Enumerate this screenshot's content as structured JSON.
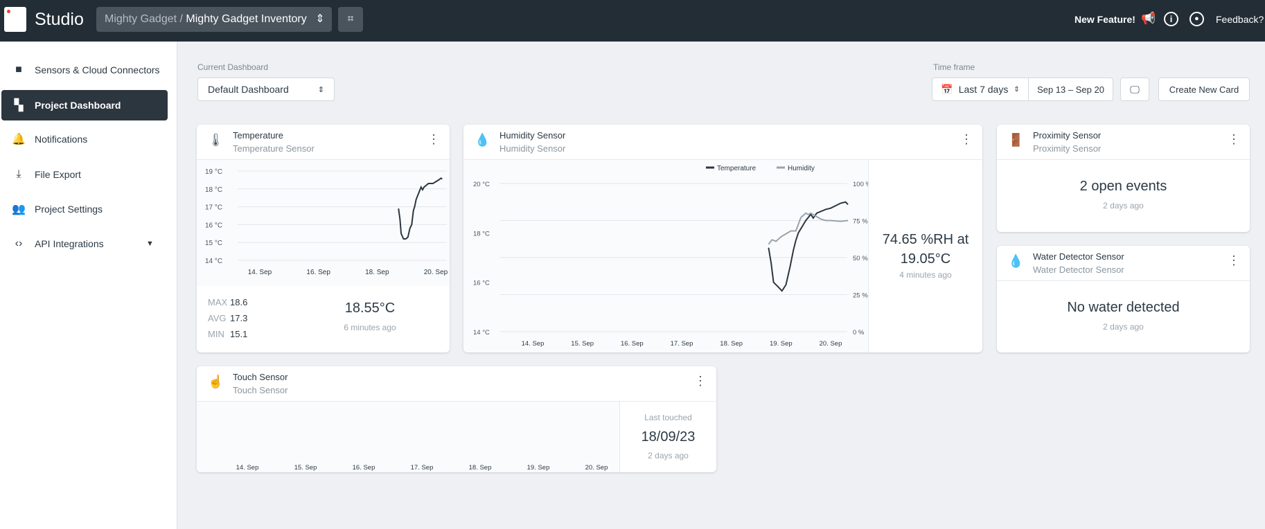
{
  "header": {
    "app_title": "Studio",
    "breadcrumb_org": "Mighty Gadget",
    "breadcrumb_sep": "/",
    "breadcrumb_project": "Mighty Gadget Inventory",
    "new_feature": "New Feature!",
    "feedback": "Feedback?"
  },
  "sidebar": {
    "items": [
      {
        "label": "Sensors & Cloud Connectors",
        "icon": "chip-icon"
      },
      {
        "label": "Project Dashboard",
        "icon": "dashboard-icon",
        "active": true
      },
      {
        "label": "Notifications",
        "icon": "bell-icon"
      },
      {
        "label": "File Export",
        "icon": "download-icon"
      },
      {
        "label": "Project Settings",
        "icon": "users-icon"
      },
      {
        "label": "API Integrations",
        "icon": "code-icon"
      }
    ]
  },
  "toolbar": {
    "dashboard_label": "Current Dashboard",
    "dashboard_value": "Default Dashboard",
    "timeframe_label": "Time frame",
    "timeframe_value": "Last 7 days",
    "date_range": "Sep 13 – Sep 20",
    "create_card": "Create New Card"
  },
  "cards": {
    "temperature": {
      "title": "Temperature",
      "subtitle": "Temperature Sensor",
      "max_label": "MAX",
      "max": "18.6",
      "avg_label": "AVG",
      "avg": "17.3",
      "min_label": "MIN",
      "min": "15.1",
      "value": "18.55°C",
      "time": "6 minutes ago"
    },
    "humidity": {
      "title": "Humidity Sensor",
      "subtitle": "Humidity Sensor",
      "value_line1": "74.65 %RH at",
      "value_line2": "19.05°C",
      "time": "4 minutes ago",
      "legend_temp": "Temperature",
      "legend_hum": "Humidity"
    },
    "proximity": {
      "title": "Proximity Sensor",
      "subtitle": "Proximity Sensor",
      "value": "2 open events",
      "time": "2 days ago"
    },
    "water": {
      "title": "Water Detector Sensor",
      "subtitle": "Water Detector Sensor",
      "value": "No water detected",
      "time": "2 days ago"
    },
    "touch": {
      "title": "Touch Sensor",
      "subtitle": "Touch Sensor",
      "label": "Last touched",
      "value": "18/09/23",
      "time": "2 days ago"
    }
  },
  "chart_data": [
    {
      "type": "line",
      "id": "temp",
      "yticks": [
        "14 °C",
        "15 °C",
        "16 °C",
        "17 °C",
        "18 °C",
        "19 °C"
      ],
      "ylim": [
        14,
        19
      ],
      "xticks": [
        "14. Sep",
        "16. Sep",
        "18. Sep",
        "20. Sep"
      ],
      "xtick_days": [
        14,
        16,
        18,
        20
      ],
      "series": [
        {
          "name": "Temperature",
          "color": "#2b3640",
          "points": [
            [
              18.73,
              16.9
            ],
            [
              18.78,
              16.3
            ],
            [
              18.82,
              15.5
            ],
            [
              18.9,
              15.2
            ],
            [
              18.98,
              15.2
            ],
            [
              19.05,
              15.3
            ],
            [
              19.12,
              15.8
            ],
            [
              19.18,
              16.0
            ],
            [
              19.24,
              16.8
            ],
            [
              19.28,
              17.0
            ],
            [
              19.33,
              17.4
            ],
            [
              19.45,
              17.9
            ],
            [
              19.5,
              18.1
            ],
            [
              19.55,
              17.95
            ],
            [
              19.6,
              18.1
            ],
            [
              19.75,
              18.3
            ],
            [
              19.9,
              18.3
            ],
            [
              20.0,
              18.4
            ],
            [
              20.1,
              18.5
            ],
            [
              20.18,
              18.6
            ],
            [
              20.22,
              18.55
            ]
          ]
        }
      ]
    },
    {
      "type": "line",
      "id": "hum",
      "yticks": [
        "14 °C",
        "16 °C",
        "18 °C",
        "20 °C"
      ],
      "ylim": [
        14,
        20
      ],
      "y2ticks": [
        "0 %",
        "25 %",
        "50 %",
        "75 %",
        "100 %"
      ],
      "y2lim": [
        0,
        100
      ],
      "xticks": [
        "14. Sep",
        "15. Sep",
        "16. Sep",
        "17. Sep",
        "18. Sep",
        "19. Sep",
        "20. Sep"
      ],
      "xtick_days": [
        14,
        15,
        16,
        17,
        18,
        19,
        20
      ],
      "series": [
        {
          "name": "Temperature",
          "color": "#2b3640",
          "axis": "left",
          "points": [
            [
              18.75,
              17.4
            ],
            [
              18.8,
              16.8
            ],
            [
              18.85,
              16.0
            ],
            [
              18.95,
              15.8
            ],
            [
              19.02,
              15.65
            ],
            [
              19.1,
              15.9
            ],
            [
              19.18,
              16.6
            ],
            [
              19.25,
              17.3
            ],
            [
              19.3,
              17.7
            ],
            [
              19.35,
              18.0
            ],
            [
              19.5,
              18.5
            ],
            [
              19.6,
              18.75
            ],
            [
              19.65,
              18.6
            ],
            [
              19.72,
              18.8
            ],
            [
              19.9,
              18.95
            ],
            [
              20.0,
              19.0
            ],
            [
              20.1,
              19.1
            ],
            [
              20.2,
              19.2
            ],
            [
              20.3,
              19.25
            ],
            [
              20.35,
              19.15
            ]
          ]
        },
        {
          "name": "Humidity",
          "color": "#9aa3ab",
          "axis": "right",
          "points": [
            [
              18.75,
              59
            ],
            [
              18.82,
              62
            ],
            [
              18.9,
              61
            ],
            [
              19.0,
              64
            ],
            [
              19.1,
              66
            ],
            [
              19.2,
              68
            ],
            [
              19.3,
              68
            ],
            [
              19.4,
              77
            ],
            [
              19.5,
              80
            ],
            [
              19.55,
              79
            ],
            [
              19.6,
              80
            ],
            [
              19.7,
              78
            ],
            [
              19.8,
              76
            ],
            [
              19.9,
              75
            ],
            [
              20.0,
              75
            ],
            [
              20.2,
              74.5
            ],
            [
              20.35,
              75
            ]
          ]
        }
      ]
    },
    {
      "type": "line",
      "id": "touch",
      "xticks": [
        "14. Sep",
        "15. Sep",
        "16. Sep",
        "17. Sep",
        "18. Sep",
        "19. Sep",
        "20. Sep"
      ],
      "xtick_days": [
        14,
        15,
        16,
        17,
        18,
        19,
        20
      ],
      "series": []
    }
  ]
}
